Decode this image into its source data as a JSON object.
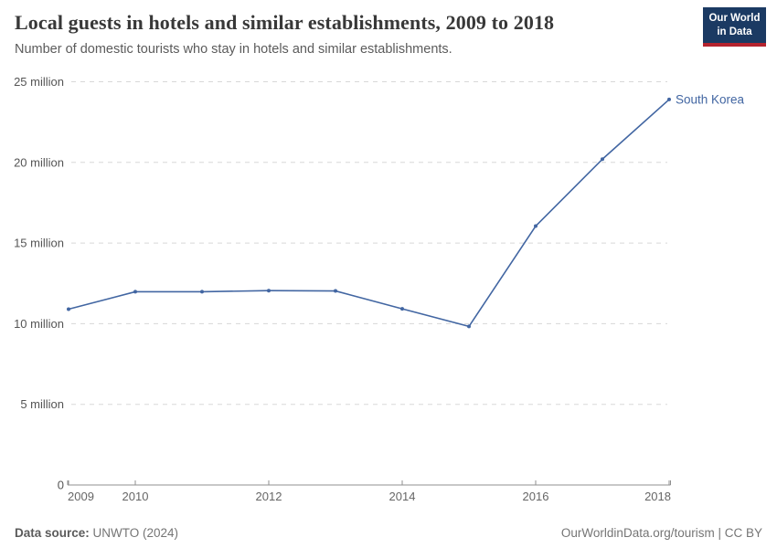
{
  "header": {
    "title": "Local guests in hotels and similar establishments, 2009 to 2018",
    "subtitle": "Number of domestic tourists who stay in hotels and similar establishments."
  },
  "logo": {
    "line1": "Our World",
    "line2": "in Data",
    "bg_color": "#1b3a63",
    "stripe_color": "#b5232e"
  },
  "chart_data": {
    "type": "line",
    "title": "Local guests in hotels and similar establishments, 2009 to 2018",
    "unit": "million",
    "x": [
      2009,
      2010,
      2011,
      2012,
      2013,
      2014,
      2015,
      2016,
      2017,
      2018
    ],
    "series": [
      {
        "name": "South Korea",
        "color": "#4266a2",
        "values_millions": [
          10.9,
          11.98,
          11.98,
          12.05,
          12.03,
          10.92,
          9.83,
          16.05,
          20.2,
          23.9
        ]
      }
    ],
    "y_axis": {
      "max_millions": 25,
      "ticks_millions": [
        5,
        10,
        15,
        20,
        25
      ],
      "tick_label_suffix": " million",
      "zero_label": "0",
      "grid": true
    },
    "x_axis": {
      "tick_labels": [
        "2009",
        "2010",
        "2012",
        "2014",
        "2016",
        "2018"
      ]
    },
    "legend": "end-of-line-label",
    "colors": {
      "gridline": "#d8d8d8",
      "axis": "#8f8f8f",
      "y_tick_text": "#555555",
      "x_tick_text": "#666666"
    }
  },
  "footer": {
    "source_label": "Data source:",
    "source_value": " UNWTO (2024)",
    "link": "OurWorldinData.org/tourism | CC BY"
  }
}
